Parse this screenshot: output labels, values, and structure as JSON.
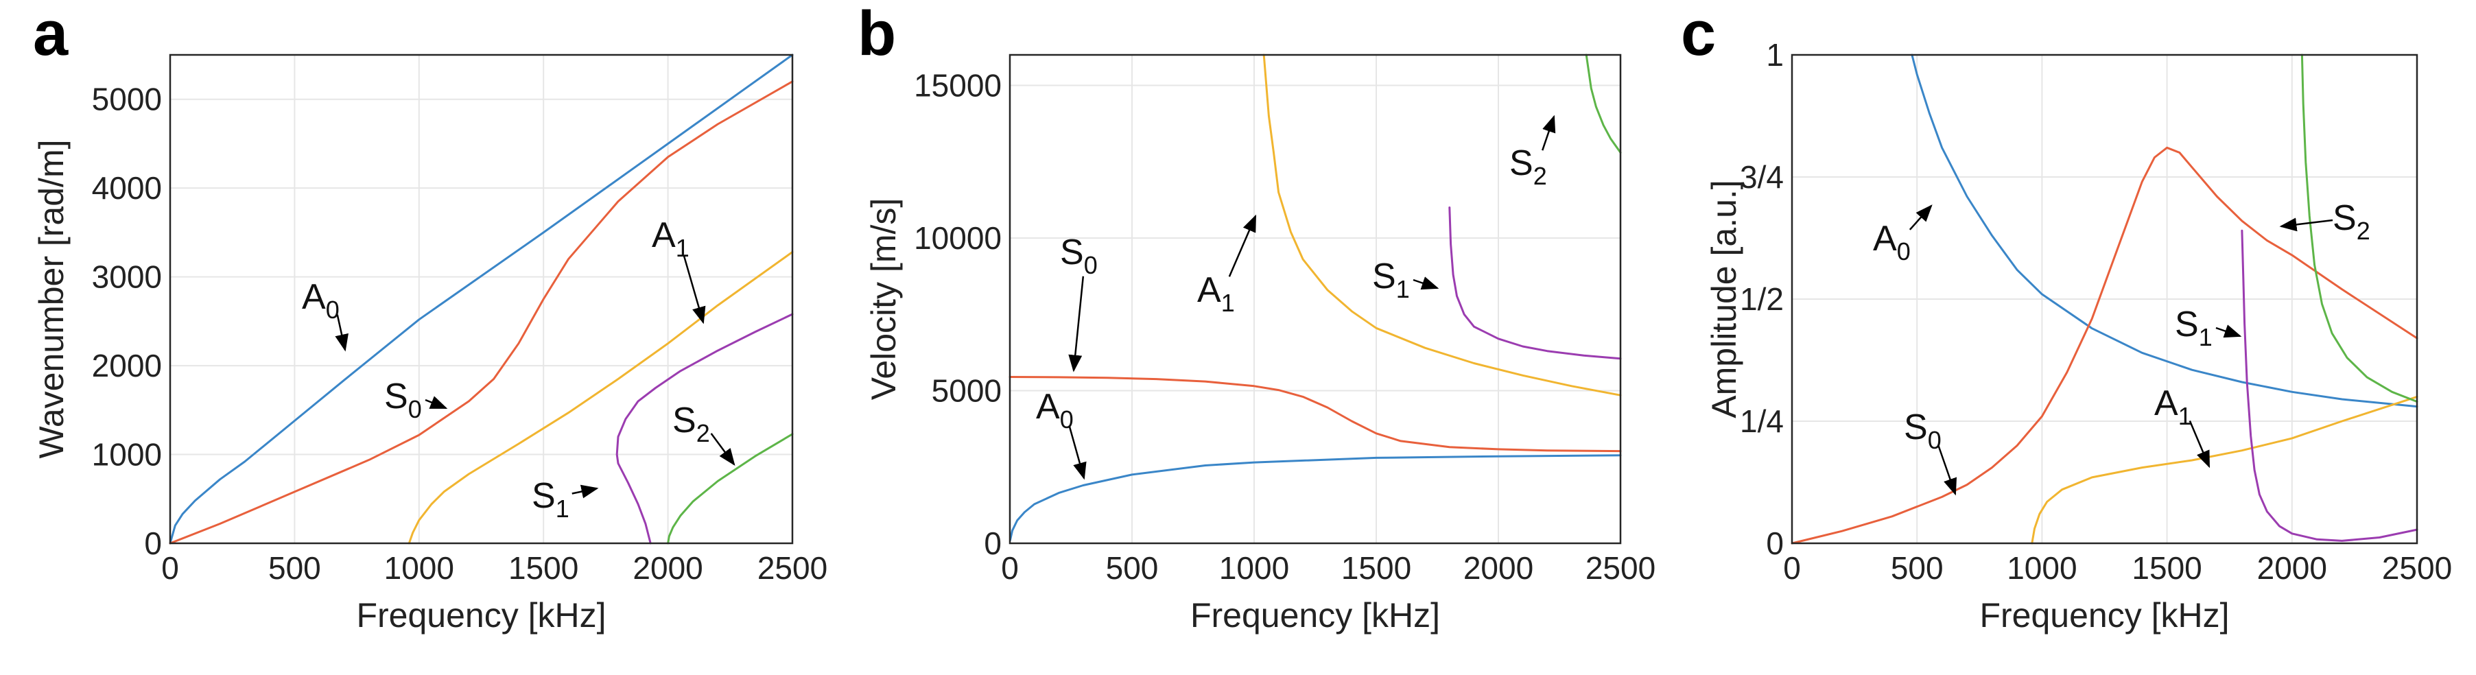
{
  "colors": {
    "A0": "#3a86c8",
    "S0": "#e8603c",
    "A1": "#f1b530",
    "S1": "#9b3cb0",
    "S2": "#5db548"
  },
  "chart_data": [
    {
      "panel": "a",
      "type": "line",
      "xlabel": "Frequency [kHz]",
      "ylabel": "Wavenumber [rad/m]",
      "xlim": [
        0,
        2500
      ],
      "ylim": [
        0,
        5500
      ],
      "xticks": [
        "0",
        "500",
        "1000",
        "1500",
        "2000",
        "2500"
      ],
      "yticks": [
        "0",
        "1000",
        "2000",
        "3000",
        "4000",
        "5000"
      ],
      "xtick_values": [
        0,
        500,
        1000,
        1500,
        2000,
        2500
      ],
      "ytick_values": [
        0,
        1000,
        2000,
        3000,
        4000,
        5000
      ],
      "series": [
        {
          "name": "A0",
          "x": [
            0,
            20,
            50,
            100,
            200,
            300,
            500,
            700,
            1000,
            1500,
            2000,
            2500
          ],
          "y": [
            0,
            200,
            330,
            480,
            720,
            920,
            1380,
            1840,
            2520,
            3500,
            4500,
            5500
          ]
        },
        {
          "name": "S0",
          "x": [
            0,
            200,
            500,
            800,
            1000,
            1200,
            1300,
            1400,
            1500,
            1600,
            1800,
            2000,
            2200,
            2500
          ],
          "y": [
            0,
            220,
            580,
            940,
            1220,
            1600,
            1850,
            2250,
            2750,
            3200,
            3850,
            4350,
            4720,
            5200
          ]
        },
        {
          "name": "A1",
          "x": [
            960,
            975,
            1000,
            1050,
            1100,
            1200,
            1400,
            1600,
            1800,
            2000,
            2200,
            2500
          ],
          "y": [
            0,
            120,
            260,
            440,
            580,
            780,
            1120,
            1470,
            1850,
            2250,
            2680,
            3280
          ]
        },
        {
          "name": "S1",
          "x": [
            1930,
            1910,
            1880,
            1840,
            1800,
            1795,
            1800,
            1830,
            1880,
            1950,
            2050,
            2200,
            2350,
            2500
          ],
          "y": [
            0,
            220,
            440,
            680,
            900,
            1000,
            1200,
            1400,
            1600,
            1750,
            1940,
            2170,
            2380,
            2580
          ]
        },
        {
          "name": "S2",
          "x": [
            2000,
            2005,
            2020,
            2050,
            2100,
            2200,
            2350,
            2500
          ],
          "y": [
            0,
            80,
            180,
            310,
            470,
            700,
            980,
            1230
          ]
        }
      ],
      "annotations": [
        {
          "label": "A",
          "sub": "0",
          "series": "A0"
        },
        {
          "label": "S",
          "sub": "0",
          "series": "S0"
        },
        {
          "label": "A",
          "sub": "1",
          "series": "A1"
        },
        {
          "label": "S",
          "sub": "1",
          "series": "S1"
        },
        {
          "label": "S",
          "sub": "2",
          "series": "S2"
        }
      ]
    },
    {
      "panel": "b",
      "type": "line",
      "xlabel": "Frequency [kHz]",
      "ylabel": "Velocity [m/s]",
      "xlim": [
        0,
        2500
      ],
      "ylim": [
        0,
        16000
      ],
      "xticks": [
        "0",
        "500",
        "1000",
        "1500",
        "2000",
        "2500"
      ],
      "yticks": [
        "0",
        "5000",
        "10000",
        "15000"
      ],
      "xtick_values": [
        0,
        500,
        1000,
        1500,
        2000,
        2500
      ],
      "ytick_values": [
        0,
        5000,
        10000,
        15000
      ],
      "series": [
        {
          "name": "A0",
          "x": [
            1,
            10,
            30,
            60,
            100,
            200,
            300,
            500,
            800,
            1000,
            1500,
            2000,
            2500
          ],
          "y": [
            100,
            420,
            750,
            1020,
            1280,
            1650,
            1900,
            2250,
            2550,
            2650,
            2800,
            2850,
            2880
          ]
        },
        {
          "name": "S0",
          "x": [
            0,
            200,
            400,
            600,
            800,
            1000,
            1100,
            1200,
            1300,
            1400,
            1500,
            1600,
            1800,
            2000,
            2200,
            2500
          ],
          "y": [
            5450,
            5440,
            5420,
            5380,
            5300,
            5150,
            5020,
            4800,
            4450,
            4000,
            3600,
            3350,
            3150,
            3080,
            3040,
            3020
          ]
        },
        {
          "name": "A1",
          "x": [
            1040,
            1060,
            1080,
            1100,
            1150,
            1200,
            1300,
            1400,
            1500,
            1700,
            1900,
            2100,
            2300,
            2500
          ],
          "y": [
            16000,
            14000,
            12800,
            11500,
            10200,
            9300,
            8300,
            7600,
            7050,
            6400,
            5900,
            5500,
            5150,
            4850
          ]
        },
        {
          "name": "S1",
          "x": [
            1800,
            1805,
            1815,
            1830,
            1860,
            1900,
            2000,
            2100,
            2200,
            2350,
            2500
          ],
          "y": [
            11000,
            9800,
            8800,
            8100,
            7500,
            7100,
            6700,
            6450,
            6300,
            6150,
            6050
          ]
        },
        {
          "name": "S2",
          "x": [
            2360,
            2380,
            2400,
            2430,
            2460,
            2500
          ],
          "y": [
            16000,
            14900,
            14300,
            13700,
            13250,
            12800
          ]
        }
      ],
      "annotations": [
        {
          "label": "S",
          "sub": "0",
          "series": "S0"
        },
        {
          "label": "A",
          "sub": "0",
          "series": "A0"
        },
        {
          "label": "A",
          "sub": "1",
          "series": "A1"
        },
        {
          "label": "S",
          "sub": "1",
          "series": "S1"
        },
        {
          "label": "S",
          "sub": "2",
          "series": "S2"
        }
      ]
    },
    {
      "panel": "c",
      "type": "line",
      "xlabel": "Frequency [kHz]",
      "ylabel": "Amplitude [a.u.]",
      "xlim": [
        0,
        2500
      ],
      "ylim": [
        0,
        1
      ],
      "xticks": [
        "0",
        "500",
        "1000",
        "1500",
        "2000",
        "2500"
      ],
      "yticks": [
        "0",
        "1/4",
        "1/2",
        "3/4",
        "1"
      ],
      "xtick_values": [
        0,
        500,
        1000,
        1500,
        2000,
        2500
      ],
      "ytick_values": [
        0,
        0.25,
        0.5,
        0.75,
        1
      ],
      "series": [
        {
          "name": "A0",
          "x": [
            480,
            500,
            550,
            600,
            700,
            800,
            900,
            1000,
            1200,
            1400,
            1600,
            1800,
            2000,
            2200,
            2500
          ],
          "y": [
            1.0,
            0.96,
            0.88,
            0.81,
            0.71,
            0.63,
            0.56,
            0.51,
            0.44,
            0.39,
            0.355,
            0.33,
            0.31,
            0.295,
            0.28
          ]
        },
        {
          "name": "S0",
          "x": [
            0,
            200,
            400,
            600,
            700,
            800,
            900,
            1000,
            1100,
            1200,
            1300,
            1400,
            1450,
            1500,
            1550,
            1600,
            1700,
            1800,
            1900,
            2000,
            2200,
            2500
          ],
          "y": [
            0,
            0.025,
            0.055,
            0.095,
            0.12,
            0.155,
            0.2,
            0.26,
            0.35,
            0.46,
            0.6,
            0.74,
            0.79,
            0.81,
            0.8,
            0.77,
            0.71,
            0.66,
            0.62,
            0.59,
            0.52,
            0.42
          ]
        },
        {
          "name": "A1",
          "x": [
            960,
            970,
            990,
            1020,
            1080,
            1200,
            1400,
            1600,
            1800,
            2000,
            2200,
            2500
          ],
          "y": [
            0,
            0.03,
            0.06,
            0.085,
            0.11,
            0.135,
            0.155,
            0.17,
            0.19,
            0.215,
            0.25,
            0.3
          ]
        },
        {
          "name": "S1",
          "x": [
            1800,
            1805,
            1810,
            1820,
            1835,
            1850,
            1870,
            1900,
            1950,
            2000,
            2100,
            2200,
            2350,
            2500
          ],
          "y": [
            0.64,
            0.55,
            0.45,
            0.33,
            0.22,
            0.15,
            0.1,
            0.065,
            0.035,
            0.02,
            0.008,
            0.005,
            0.012,
            0.028
          ]
        },
        {
          "name": "S2",
          "x": [
            2040,
            2045,
            2055,
            2070,
            2090,
            2120,
            2160,
            2220,
            2300,
            2400,
            2500
          ],
          "y": [
            1.0,
            0.9,
            0.78,
            0.67,
            0.57,
            0.49,
            0.43,
            0.38,
            0.34,
            0.31,
            0.29
          ]
        }
      ],
      "annotations": [
        {
          "label": "A",
          "sub": "0",
          "series": "A0"
        },
        {
          "label": "S",
          "sub": "2",
          "series": "S2"
        },
        {
          "label": "S",
          "sub": "1",
          "series": "S1"
        },
        {
          "label": "S",
          "sub": "0",
          "series": "S0"
        },
        {
          "label": "A",
          "sub": "1",
          "series": "A1"
        }
      ]
    }
  ]
}
